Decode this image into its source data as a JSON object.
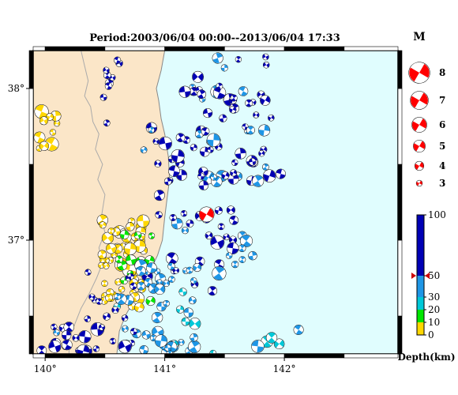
{
  "title": "Period:2003/06/04 00:00--2013/06/04 17:33",
  "map": {
    "lon_range": [
      139.9,
      142.95
    ],
    "lat_range": [
      36.25,
      38.25
    ],
    "lon_ticks": [
      {
        "value": 140,
        "label": "140°"
      },
      {
        "value": 141,
        "label": "141°"
      },
      {
        "value": 142,
        "label": "142°"
      }
    ],
    "lat_ticks": [
      {
        "value": 38,
        "label": "38°"
      },
      {
        "value": 37,
        "label": "37°"
      }
    ],
    "colors": {
      "land": "#fbe6c8",
      "sea": "#e0fdfe",
      "coast": "#888888",
      "border": "#aaaaaa"
    },
    "coast_lonlat": [
      [
        141.0,
        38.25
      ],
      [
        140.97,
        38.12
      ],
      [
        140.93,
        38.0
      ],
      [
        140.95,
        37.92
      ],
      [
        140.97,
        37.8
      ],
      [
        141.0,
        37.7
      ],
      [
        141.03,
        37.55
      ],
      [
        141.04,
        37.4
      ],
      [
        141.02,
        37.28
      ],
      [
        141.0,
        37.15
      ],
      [
        140.98,
        37.0
      ],
      [
        140.94,
        36.9
      ],
      [
        140.88,
        36.8
      ],
      [
        140.8,
        36.7
      ],
      [
        140.74,
        36.6
      ],
      [
        140.67,
        36.5
      ],
      [
        140.62,
        36.4
      ],
      [
        140.6,
        36.25
      ]
    ],
    "border_lonlat": [
      [
        140.3,
        38.25
      ],
      [
        140.33,
        38.15
      ],
      [
        140.36,
        38.05
      ],
      [
        140.33,
        37.95
      ],
      [
        140.38,
        37.88
      ],
      [
        140.4,
        37.78
      ],
      [
        140.45,
        37.7
      ],
      [
        140.42,
        37.6
      ],
      [
        140.48,
        37.5
      ],
      [
        140.44,
        37.4
      ],
      [
        140.5,
        37.3
      ],
      [
        140.47,
        37.15
      ],
      [
        140.5,
        37.05
      ],
      [
        140.45,
        36.95
      ],
      [
        140.48,
        36.85
      ],
      [
        140.43,
        36.75
      ],
      [
        140.37,
        36.65
      ],
      [
        140.3,
        36.55
      ],
      [
        140.25,
        36.45
      ],
      [
        140.2,
        36.35
      ],
      [
        140.2,
        36.25
      ]
    ],
    "highlight_event": {
      "lon": 141.35,
      "lat": 37.17,
      "mag": 6
    }
  },
  "events_seed": 12345,
  "event_clusters": [
    {
      "lon": 141.3,
      "lat": 37.2,
      "dlon": 0.45,
      "dlat": 0.55,
      "n": 70,
      "depth": [
        35,
        90
      ]
    },
    {
      "lon": 141.6,
      "lat": 37.7,
      "dlon": 0.4,
      "dlat": 0.35,
      "n": 30,
      "depth": [
        35,
        95
      ]
    },
    {
      "lon": 141.5,
      "lat": 38.05,
      "dlon": 0.35,
      "dlat": 0.2,
      "n": 18,
      "depth": [
        35,
        95
      ]
    },
    {
      "lon": 140.65,
      "lat": 36.85,
      "dlon": 0.18,
      "dlat": 0.3,
      "n": 65,
      "depth": [
        1,
        9
      ]
    },
    {
      "lon": 140.75,
      "lat": 36.8,
      "dlon": 0.15,
      "dlat": 0.25,
      "n": 12,
      "depth": [
        11,
        19
      ]
    },
    {
      "lon": 140.95,
      "lat": 36.55,
      "dlon": 0.35,
      "dlat": 0.3,
      "n": 50,
      "depth": [
        25,
        45
      ]
    },
    {
      "lon": 140.5,
      "lat": 36.55,
      "dlon": 0.25,
      "dlat": 0.3,
      "n": 25,
      "depth": [
        45,
        90
      ]
    },
    {
      "lon": 140.1,
      "lat": 36.35,
      "dlon": 0.15,
      "dlat": 0.1,
      "n": 12,
      "depth": [
        45,
        90
      ]
    },
    {
      "lon": 140.0,
      "lat": 37.75,
      "dlon": 0.1,
      "dlat": 0.15,
      "n": 10,
      "depth": [
        1,
        9
      ]
    },
    {
      "lon": 141.8,
      "lat": 36.35,
      "dlon": 0.4,
      "dlat": 0.1,
      "n": 6,
      "depth": [
        25,
        40
      ]
    },
    {
      "lon": 140.7,
      "lat": 37.85,
      "dlon": 0.25,
      "dlat": 0.35,
      "n": 12,
      "depth": [
        45,
        90
      ]
    }
  ],
  "mag_legend": {
    "header": "M",
    "entries": [
      {
        "label": "8",
        "mag": 8
      },
      {
        "label": "7",
        "mag": 7
      },
      {
        "label": "6",
        "mag": 6
      },
      {
        "label": "5",
        "mag": 5
      },
      {
        "label": "4",
        "mag": 4
      },
      {
        "label": "3",
        "mag": 3
      }
    ],
    "color": "#ff0000"
  },
  "depth_legend": {
    "label": "Depth(km)",
    "ticks": [
      {
        "value": 100,
        "label": "100"
      },
      {
        "value": 50,
        "label": "50"
      },
      {
        "value": 30,
        "label": "30"
      },
      {
        "value": 20,
        "label": "20"
      },
      {
        "value": 10,
        "label": "10"
      },
      {
        "value": 0,
        "label": "0"
      }
    ],
    "bands": [
      {
        "from": 0,
        "to": 10,
        "color": "#ffd700"
      },
      {
        "from": 10,
        "to": 20,
        "color": "#00e600"
      },
      {
        "from": 20,
        "to": 30,
        "color": "#00c8d8"
      },
      {
        "from": 30,
        "to": 50,
        "color": "#1e96e6"
      },
      {
        "from": 50,
        "to": 100,
        "color": "#0000b4"
      }
    ],
    "marker_value": 50,
    "marker_color": "#cc0000"
  }
}
